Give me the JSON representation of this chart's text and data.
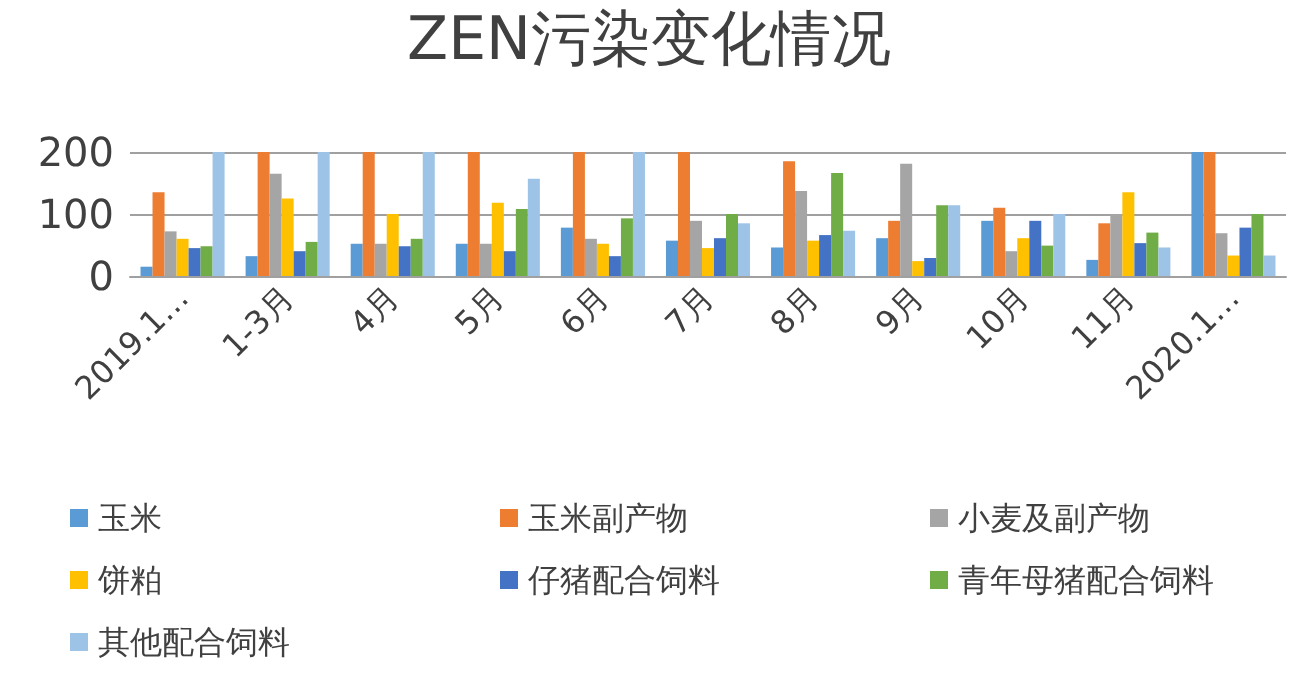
{
  "chart_data": {
    "type": "bar",
    "title": "ZEN污染变化情况",
    "categories": [
      "2019.1…",
      "1-3月",
      "4月",
      "5月",
      "6月",
      "7月",
      "8月",
      "9月",
      "10月",
      "11月",
      "2020.1…"
    ],
    "series": [
      {
        "name": "玉米",
        "color": "#5b9bd5",
        "values": [
          15,
          32,
          52,
          52,
          78,
          57,
          46,
          61,
          89,
          26,
          200
        ]
      },
      {
        "name": "玉米副产物",
        "color": "#ed7d31",
        "values": [
          135,
          200,
          200,
          200,
          200,
          200,
          185,
          89,
          110,
          85,
          200
        ]
      },
      {
        "name": "小麦及副产物",
        "color": "#a5a5a5",
        "values": [
          72,
          165,
          52,
          52,
          60,
          89,
          137,
          181,
          40,
          100,
          69
        ]
      },
      {
        "name": "饼粕",
        "color": "#ffc000",
        "values": [
          60,
          125,
          100,
          118,
          52,
          45,
          57,
          24,
          61,
          135,
          33
        ]
      },
      {
        "name": "仔猪配合饲料",
        "color": "#4472c4",
        "values": [
          45,
          40,
          48,
          40,
          32,
          61,
          66,
          29,
          89,
          53,
          78
        ]
      },
      {
        "name": "青年母猪配合饲料",
        "color": "#70ad47",
        "values": [
          48,
          55,
          60,
          108,
          93,
          100,
          166,
          114,
          49,
          70,
          100
        ]
      },
      {
        "name": "其他配合饲料",
        "color": "#9dc3e6",
        "values": [
          200,
          200,
          200,
          157,
          200,
          85,
          73,
          114,
          100,
          46,
          33
        ]
      }
    ],
    "ylim": [
      0,
      200
    ],
    "yticks": [
      0,
      100,
      200
    ],
    "grid": "y",
    "legend": "bottom"
  }
}
